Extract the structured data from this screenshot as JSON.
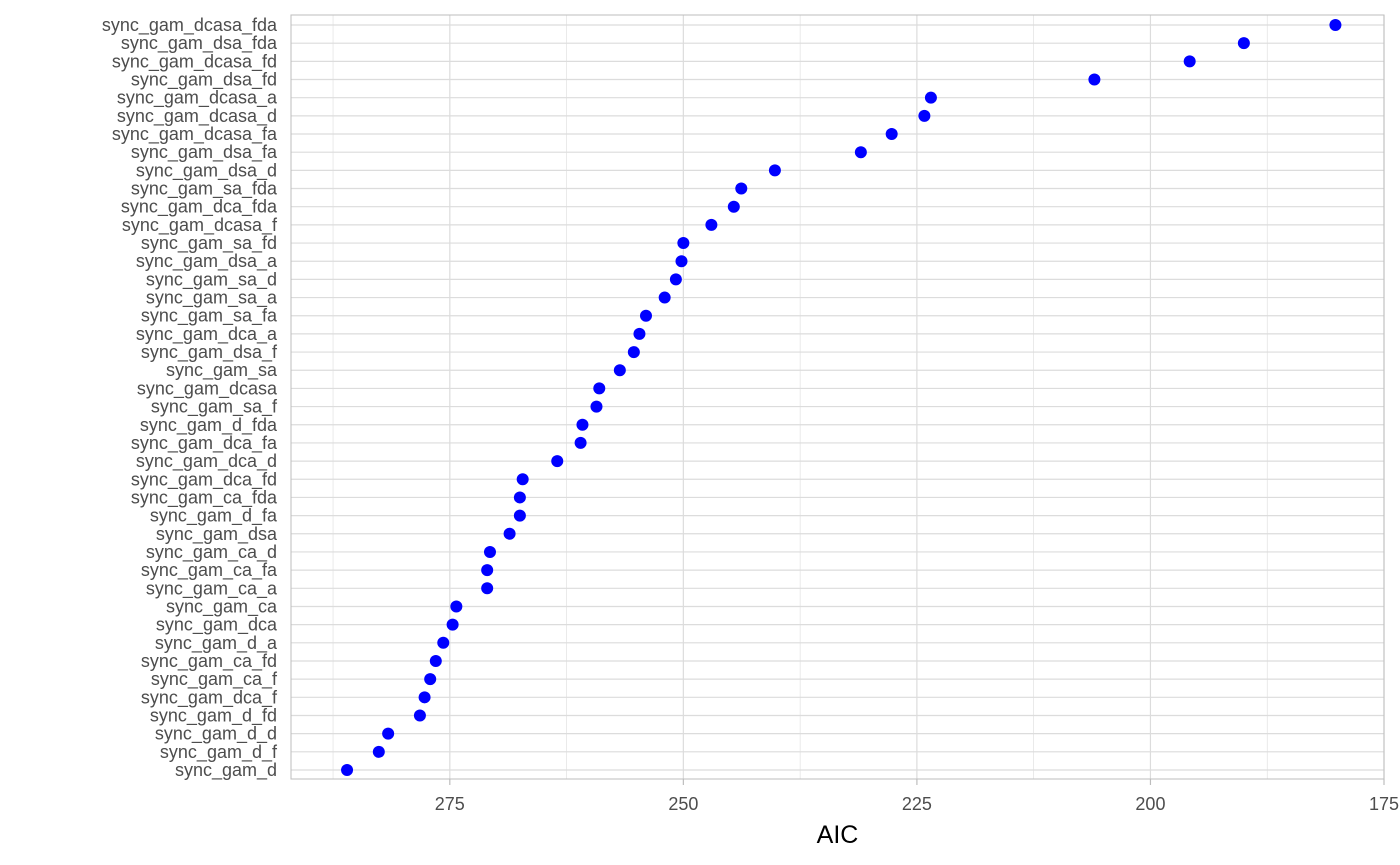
{
  "chart_data": {
    "type": "scatter",
    "title": "",
    "xlabel": "AIC",
    "ylabel": "",
    "x_reversed": true,
    "xlim": [
      292,
      175
    ],
    "x_ticks": [
      275,
      250,
      225,
      200,
      175
    ],
    "x_tick_labels": [
      "275",
      "250",
      "225",
      "200",
      "175"
    ],
    "grid": true,
    "point_color": "#0000ff",
    "grid_color": "#dcdcdc",
    "border_color": "#bdbdbd",
    "points": [
      {
        "model": "sync_gam_dcasa_fda",
        "aic": 180.2
      },
      {
        "model": "sync_gam_dsa_fda",
        "aic": 190.0
      },
      {
        "model": "sync_gam_dcasa_fd",
        "aic": 195.8
      },
      {
        "model": "sync_gam_dsa_fd",
        "aic": 206.0
      },
      {
        "model": "sync_gam_dcasa_a",
        "aic": 223.5
      },
      {
        "model": "sync_gam_dcasa_d",
        "aic": 224.2
      },
      {
        "model": "sync_gam_dcasa_fa",
        "aic": 227.7
      },
      {
        "model": "sync_gam_dsa_fa",
        "aic": 231.0
      },
      {
        "model": "sync_gam_dsa_d",
        "aic": 240.2
      },
      {
        "model": "sync_gam_sa_fda",
        "aic": 243.8
      },
      {
        "model": "sync_gam_dca_fda",
        "aic": 244.6
      },
      {
        "model": "sync_gam_dcasa_f",
        "aic": 247.0
      },
      {
        "model": "sync_gam_sa_fd",
        "aic": 250.0
      },
      {
        "model": "sync_gam_dsa_a",
        "aic": 250.2
      },
      {
        "model": "sync_gam_sa_d",
        "aic": 250.8
      },
      {
        "model": "sync_gam_sa_a",
        "aic": 252.0
      },
      {
        "model": "sync_gam_sa_fa",
        "aic": 254.0
      },
      {
        "model": "sync_gam_dca_a",
        "aic": 254.7
      },
      {
        "model": "sync_gam_dsa_f",
        "aic": 255.3
      },
      {
        "model": "sync_gam_sa",
        "aic": 256.8
      },
      {
        "model": "sync_gam_dcasa",
        "aic": 259.0
      },
      {
        "model": "sync_gam_sa_f",
        "aic": 259.3
      },
      {
        "model": "sync_gam_d_fda",
        "aic": 260.8
      },
      {
        "model": "sync_gam_dca_fa",
        "aic": 261.0
      },
      {
        "model": "sync_gam_dca_d",
        "aic": 263.5
      },
      {
        "model": "sync_gam_dca_fd",
        "aic": 267.2
      },
      {
        "model": "sync_gam_ca_fda",
        "aic": 267.5
      },
      {
        "model": "sync_gam_d_fa",
        "aic": 267.5
      },
      {
        "model": "sync_gam_dsa",
        "aic": 268.6
      },
      {
        "model": "sync_gam_ca_d",
        "aic": 270.7
      },
      {
        "model": "sync_gam_ca_fa",
        "aic": 271.0
      },
      {
        "model": "sync_gam_ca_a",
        "aic": 271.0
      },
      {
        "model": "sync_gam_ca",
        "aic": 274.3
      },
      {
        "model": "sync_gam_dca",
        "aic": 274.7
      },
      {
        "model": "sync_gam_d_a",
        "aic": 275.7
      },
      {
        "model": "sync_gam_ca_fd",
        "aic": 276.5
      },
      {
        "model": "sync_gam_ca_f",
        "aic": 277.1
      },
      {
        "model": "sync_gam_dca_f",
        "aic": 277.7
      },
      {
        "model": "sync_gam_d_fd",
        "aic": 278.2
      },
      {
        "model": "sync_gam_d_d",
        "aic": 281.6
      },
      {
        "model": "sync_gam_d_f",
        "aic": 282.6
      },
      {
        "model": "sync_gam_d",
        "aic": 286.0
      }
    ]
  }
}
